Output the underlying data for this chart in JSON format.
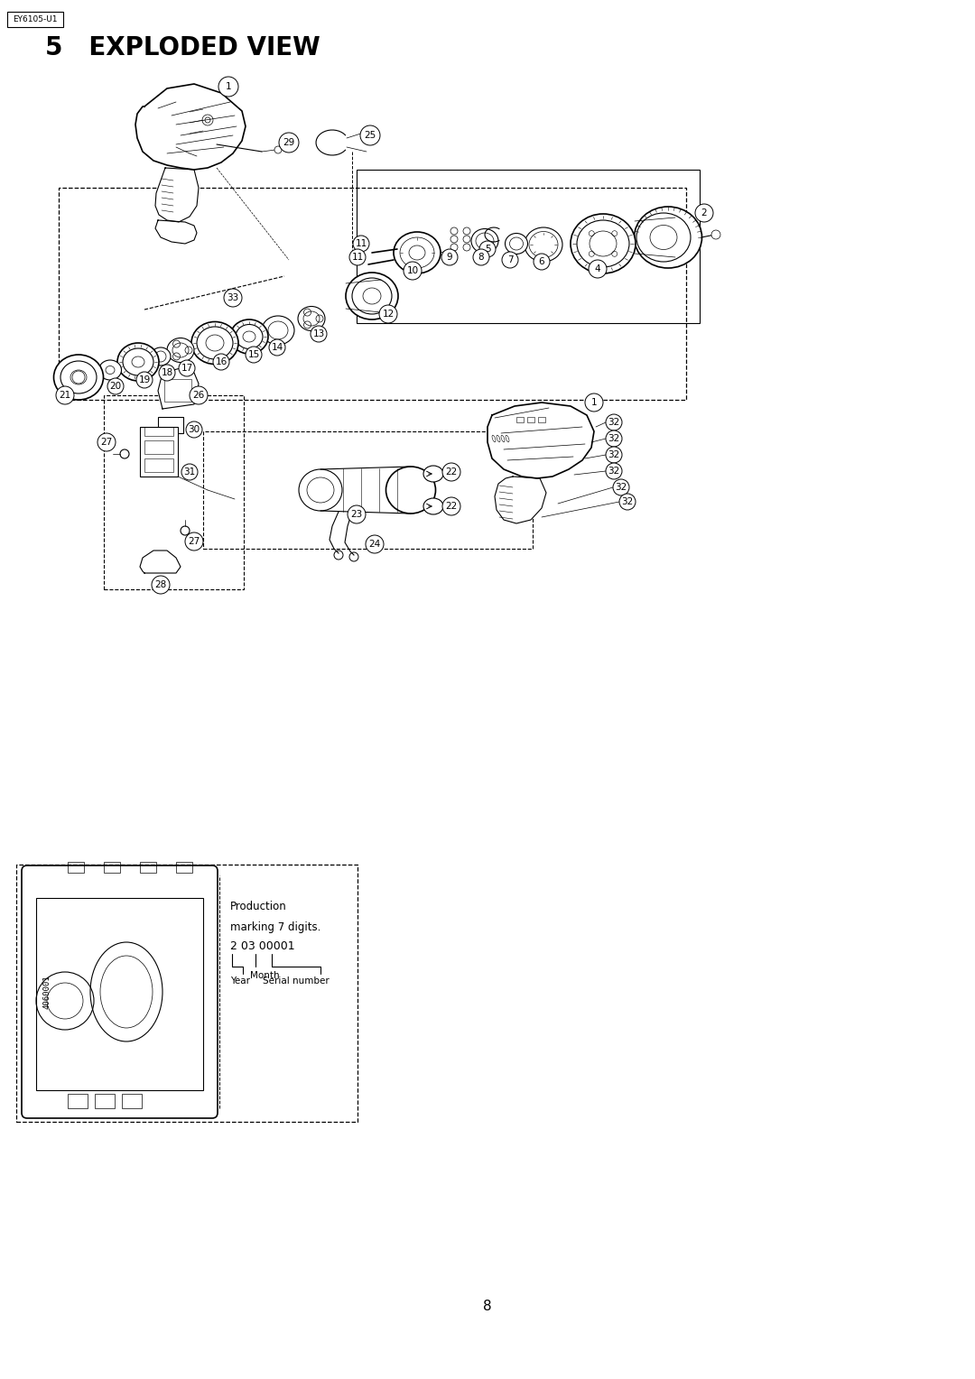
{
  "title": "5   EXPLODED VIEW",
  "model_label": "EY6105-U1",
  "page_number": "8",
  "bg_color": "#ffffff",
  "lc": "#000000",
  "fig_width": 10.8,
  "fig_height": 15.28,
  "title_fontsize": 20,
  "label_fontsize": 8,
  "model_fontsize": 6.5,
  "page_fontsize": 10
}
